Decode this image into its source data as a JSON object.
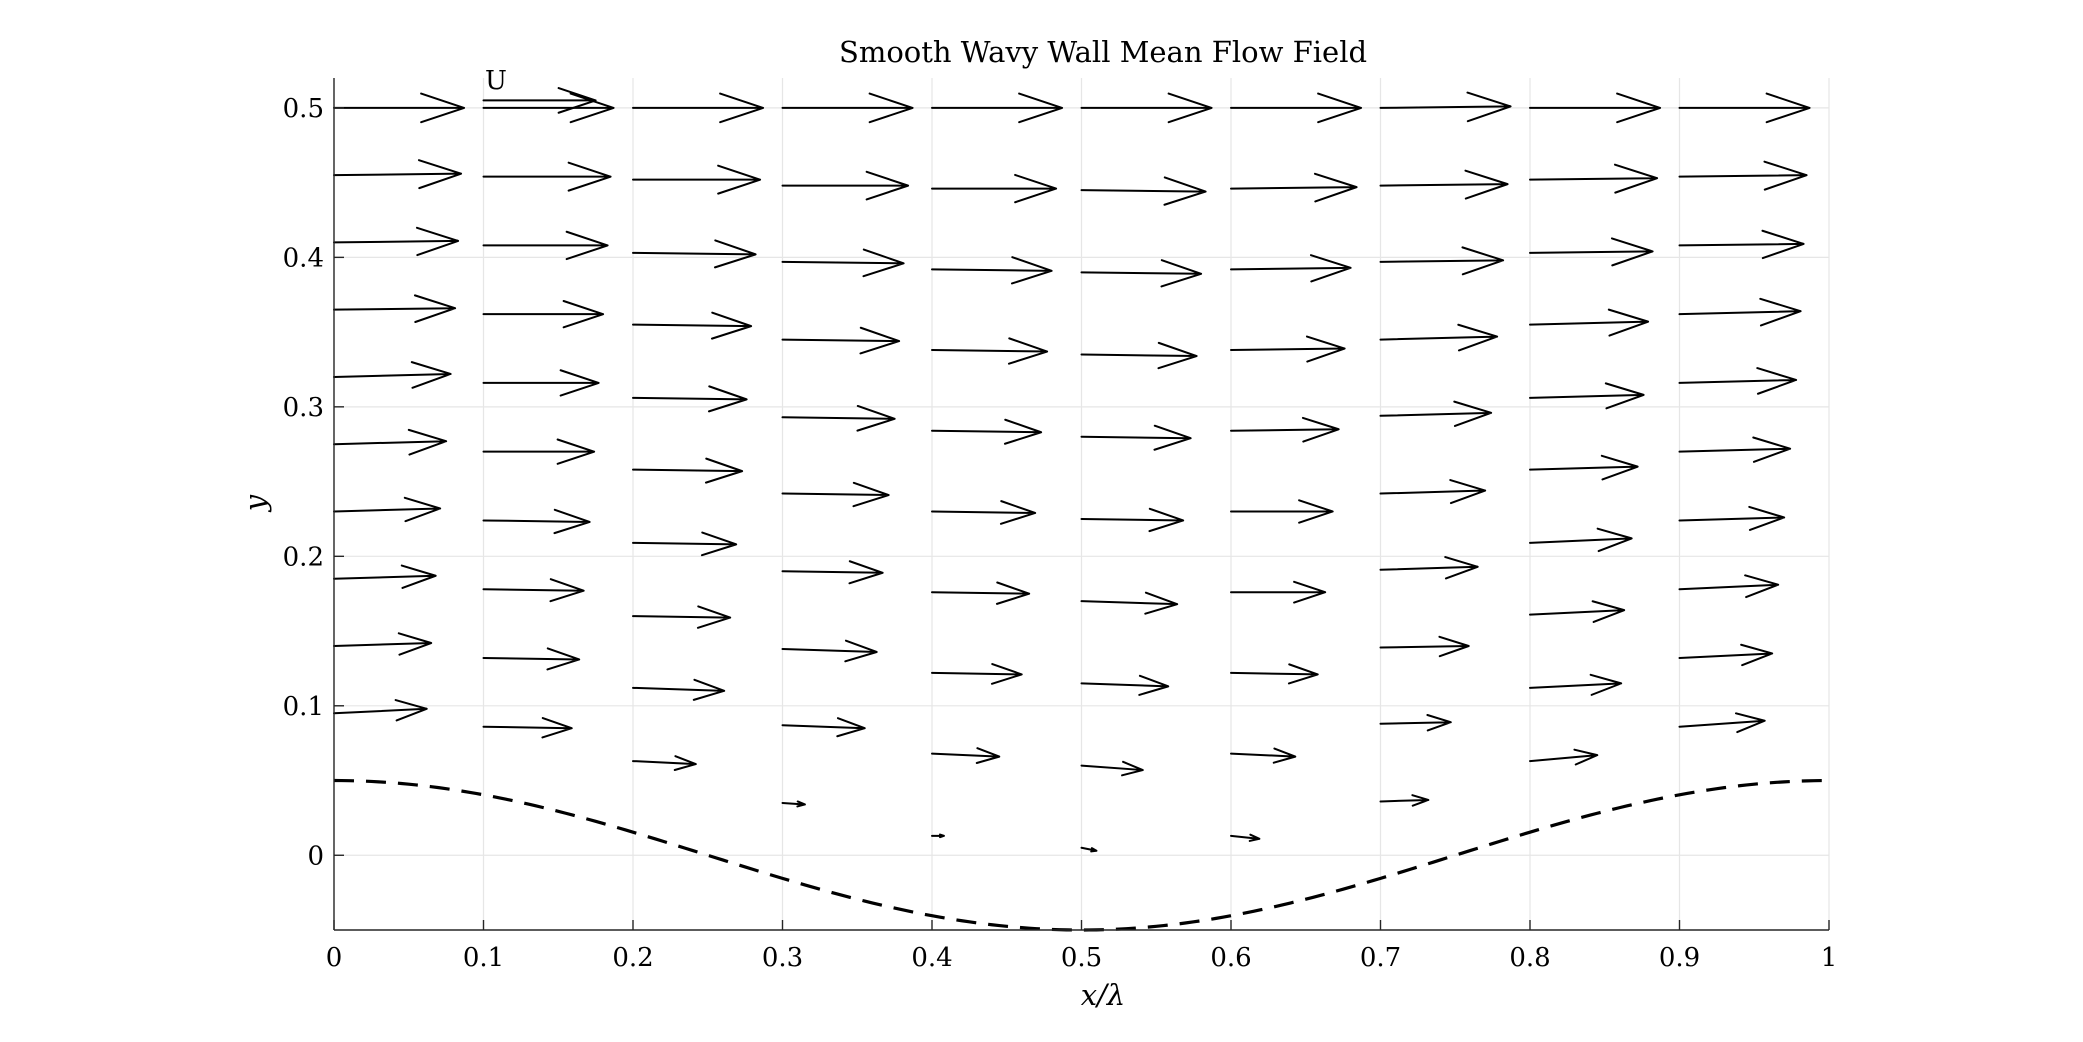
{
  "chart_data": {
    "type": "quiver",
    "title": "Smooth Wavy Wall Mean Flow Field",
    "xlabel": "x/λ",
    "ylabel": "y",
    "xlim": [
      0,
      1
    ],
    "ylim": [
      -0.05,
      0.52
    ],
    "xticks": [
      "0",
      "0.1",
      "0.2",
      "0.3",
      "0.4",
      "0.5",
      "0.6",
      "0.7",
      "0.8",
      "0.9",
      "1"
    ],
    "yticks": [
      "0",
      "0.1",
      "0.2",
      "0.3",
      "0.4",
      "0.5"
    ],
    "grid": true,
    "reference_label": "U",
    "reference_vector": {
      "x": 0.1,
      "y": 0.505,
      "u": 0.075,
      "v": 0.0
    },
    "wall": {
      "type": "cosine",
      "amplitude": 0.05,
      "wavelength": 1.0,
      "style": "dashed"
    },
    "series": [
      {
        "x": 0.0,
        "points": [
          {
            "y": 0.095,
            "u": 0.062,
            "v": 0.003
          },
          {
            "y": 0.14,
            "u": 0.065,
            "v": 0.002
          },
          {
            "y": 0.185,
            "u": 0.068,
            "v": 0.002
          },
          {
            "y": 0.23,
            "u": 0.071,
            "v": 0.002
          },
          {
            "y": 0.275,
            "u": 0.075,
            "v": 0.002
          },
          {
            "y": 0.32,
            "u": 0.078,
            "v": 0.002
          },
          {
            "y": 0.365,
            "u": 0.081,
            "v": 0.001
          },
          {
            "y": 0.41,
            "u": 0.083,
            "v": 0.001
          },
          {
            "y": 0.455,
            "u": 0.085,
            "v": 0.001
          },
          {
            "y": 0.5,
            "u": 0.087,
            "v": 0.0
          }
        ]
      },
      {
        "x": 0.1,
        "points": [
          {
            "y": 0.086,
            "u": 0.059,
            "v": -0.001
          },
          {
            "y": 0.132,
            "u": 0.064,
            "v": -0.001
          },
          {
            "y": 0.178,
            "u": 0.067,
            "v": -0.001
          },
          {
            "y": 0.224,
            "u": 0.071,
            "v": -0.001
          },
          {
            "y": 0.27,
            "u": 0.074,
            "v": 0.0
          },
          {
            "y": 0.316,
            "u": 0.077,
            "v": 0.0
          },
          {
            "y": 0.362,
            "u": 0.08,
            "v": 0.0
          },
          {
            "y": 0.408,
            "u": 0.083,
            "v": 0.0
          },
          {
            "y": 0.454,
            "u": 0.085,
            "v": 0.0
          },
          {
            "y": 0.5,
            "u": 0.087,
            "v": 0.0
          }
        ]
      },
      {
        "x": 0.2,
        "points": [
          {
            "y": 0.063,
            "u": 0.042,
            "v": -0.002
          },
          {
            "y": 0.112,
            "u": 0.061,
            "v": -0.002
          },
          {
            "y": 0.16,
            "u": 0.065,
            "v": -0.001
          },
          {
            "y": 0.209,
            "u": 0.069,
            "v": -0.001
          },
          {
            "y": 0.258,
            "u": 0.073,
            "v": -0.001
          },
          {
            "y": 0.306,
            "u": 0.076,
            "v": -0.001
          },
          {
            "y": 0.355,
            "u": 0.079,
            "v": -0.001
          },
          {
            "y": 0.403,
            "u": 0.082,
            "v": -0.001
          },
          {
            "y": 0.452,
            "u": 0.085,
            "v": 0.0
          },
          {
            "y": 0.5,
            "u": 0.087,
            "v": 0.0
          }
        ]
      },
      {
        "x": 0.3,
        "points": [
          {
            "y": 0.035,
            "u": 0.015,
            "v": -0.001
          },
          {
            "y": 0.087,
            "u": 0.055,
            "v": -0.002
          },
          {
            "y": 0.138,
            "u": 0.063,
            "v": -0.002
          },
          {
            "y": 0.19,
            "u": 0.067,
            "v": -0.001
          },
          {
            "y": 0.242,
            "u": 0.071,
            "v": -0.001
          },
          {
            "y": 0.293,
            "u": 0.075,
            "v": -0.001
          },
          {
            "y": 0.345,
            "u": 0.078,
            "v": -0.001
          },
          {
            "y": 0.397,
            "u": 0.081,
            "v": -0.001
          },
          {
            "y": 0.448,
            "u": 0.084,
            "v": 0.0
          },
          {
            "y": 0.5,
            "u": 0.087,
            "v": 0.0
          }
        ]
      },
      {
        "x": 0.4,
        "points": [
          {
            "y": 0.013,
            "u": 0.008,
            "v": 0.0
          },
          {
            "y": 0.068,
            "u": 0.045,
            "v": -0.002
          },
          {
            "y": 0.122,
            "u": 0.06,
            "v": -0.001
          },
          {
            "y": 0.176,
            "u": 0.065,
            "v": -0.001
          },
          {
            "y": 0.23,
            "u": 0.069,
            "v": -0.001
          },
          {
            "y": 0.284,
            "u": 0.073,
            "v": -0.001
          },
          {
            "y": 0.338,
            "u": 0.077,
            "v": -0.001
          },
          {
            "y": 0.392,
            "u": 0.08,
            "v": -0.001
          },
          {
            "y": 0.446,
            "u": 0.083,
            "v": 0.0
          },
          {
            "y": 0.5,
            "u": 0.087,
            "v": 0.0
          }
        ]
      },
      {
        "x": 0.5,
        "points": [
          {
            "y": 0.005,
            "u": 0.01,
            "v": -0.002
          },
          {
            "y": 0.06,
            "u": 0.041,
            "v": -0.003
          },
          {
            "y": 0.115,
            "u": 0.058,
            "v": -0.002
          },
          {
            "y": 0.17,
            "u": 0.064,
            "v": -0.002
          },
          {
            "y": 0.225,
            "u": 0.068,
            "v": -0.001
          },
          {
            "y": 0.28,
            "u": 0.073,
            "v": -0.001
          },
          {
            "y": 0.335,
            "u": 0.077,
            "v": -0.001
          },
          {
            "y": 0.39,
            "u": 0.08,
            "v": -0.001
          },
          {
            "y": 0.445,
            "u": 0.083,
            "v": -0.001
          },
          {
            "y": 0.5,
            "u": 0.087,
            "v": 0.0
          }
        ]
      },
      {
        "x": 0.6,
        "points": [
          {
            "y": 0.013,
            "u": 0.019,
            "v": -0.002
          },
          {
            "y": 0.068,
            "u": 0.043,
            "v": -0.002
          },
          {
            "y": 0.122,
            "u": 0.058,
            "v": -0.001
          },
          {
            "y": 0.176,
            "u": 0.063,
            "v": 0.0
          },
          {
            "y": 0.23,
            "u": 0.068,
            "v": 0.0
          },
          {
            "y": 0.284,
            "u": 0.072,
            "v": 0.001
          },
          {
            "y": 0.338,
            "u": 0.076,
            "v": 0.001
          },
          {
            "y": 0.392,
            "u": 0.08,
            "v": 0.001
          },
          {
            "y": 0.446,
            "u": 0.084,
            "v": 0.001
          },
          {
            "y": 0.5,
            "u": 0.087,
            "v": 0.0
          }
        ]
      },
      {
        "x": 0.7,
        "points": [
          {
            "y": 0.036,
            "u": 0.032,
            "v": 0.001
          },
          {
            "y": 0.088,
            "u": 0.047,
            "v": 0.001
          },
          {
            "y": 0.139,
            "u": 0.059,
            "v": 0.001
          },
          {
            "y": 0.191,
            "u": 0.065,
            "v": 0.002
          },
          {
            "y": 0.242,
            "u": 0.07,
            "v": 0.002
          },
          {
            "y": 0.294,
            "u": 0.074,
            "v": 0.002
          },
          {
            "y": 0.345,
            "u": 0.078,
            "v": 0.002
          },
          {
            "y": 0.397,
            "u": 0.082,
            "v": 0.001
          },
          {
            "y": 0.448,
            "u": 0.085,
            "v": 0.001
          },
          {
            "y": 0.5,
            "u": 0.087,
            "v": 0.001
          }
        ]
      },
      {
        "x": 0.8,
        "points": [
          {
            "y": 0.063,
            "u": 0.045,
            "v": 0.004
          },
          {
            "y": 0.112,
            "u": 0.061,
            "v": 0.003
          },
          {
            "y": 0.161,
            "u": 0.063,
            "v": 0.003
          },
          {
            "y": 0.209,
            "u": 0.068,
            "v": 0.003
          },
          {
            "y": 0.258,
            "u": 0.072,
            "v": 0.002
          },
          {
            "y": 0.306,
            "u": 0.076,
            "v": 0.002
          },
          {
            "y": 0.355,
            "u": 0.079,
            "v": 0.002
          },
          {
            "y": 0.403,
            "u": 0.082,
            "v": 0.001
          },
          {
            "y": 0.452,
            "u": 0.085,
            "v": 0.001
          },
          {
            "y": 0.5,
            "u": 0.087,
            "v": 0.0
          }
        ]
      },
      {
        "x": 0.9,
        "points": [
          {
            "y": 0.086,
            "u": 0.057,
            "v": 0.004
          },
          {
            "y": 0.132,
            "u": 0.062,
            "v": 0.003
          },
          {
            "y": 0.178,
            "u": 0.066,
            "v": 0.003
          },
          {
            "y": 0.224,
            "u": 0.07,
            "v": 0.002
          },
          {
            "y": 0.27,
            "u": 0.074,
            "v": 0.002
          },
          {
            "y": 0.316,
            "u": 0.078,
            "v": 0.002
          },
          {
            "y": 0.362,
            "u": 0.081,
            "v": 0.002
          },
          {
            "y": 0.408,
            "u": 0.083,
            "v": 0.001
          },
          {
            "y": 0.454,
            "u": 0.085,
            "v": 0.001
          },
          {
            "y": 0.5,
            "u": 0.087,
            "v": 0.0
          }
        ]
      }
    ]
  }
}
